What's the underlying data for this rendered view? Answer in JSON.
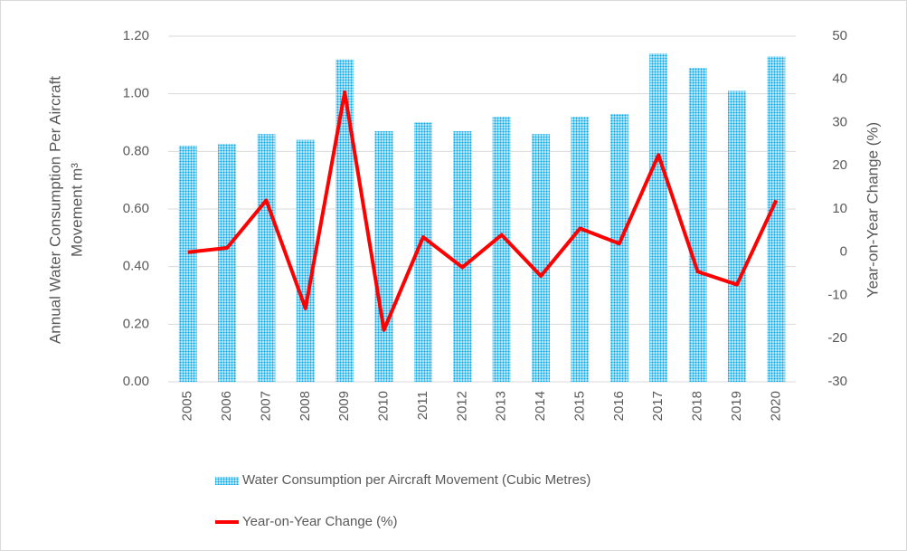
{
  "chart_data": {
    "type": "bar_line",
    "y_label": [
      "Annual Water Consumption Per Aircraft",
      "Movement  m³"
    ],
    "y2_label": "Year-on-Year Change (%)",
    "categories": [
      "2005",
      "2006",
      "2007",
      "2008",
      "2009",
      "2010",
      "2011",
      "2012",
      "2013",
      "2014",
      "2015",
      "2016",
      "2017",
      "2018",
      "2019",
      "2020"
    ],
    "series": [
      {
        "name": "Water Consumption per Aircraft Movement (Cubic Metres)",
        "type": "bar",
        "color": "#00a8e8",
        "values": [
          0.82,
          0.825,
          0.86,
          0.84,
          1.12,
          0.87,
          0.9,
          0.87,
          0.92,
          0.86,
          0.92,
          0.93,
          1.14,
          1.09,
          1.01,
          1.13
        ]
      },
      {
        "name": "Year-on-Year Change (%)",
        "type": "line",
        "color": "#ff0000",
        "axis": "y2",
        "values": [
          0,
          1,
          12,
          -13,
          37,
          -18,
          3.5,
          -3.5,
          4,
          -5.5,
          5.5,
          2,
          22.5,
          -4.5,
          -7.5,
          12
        ]
      }
    ],
    "ylim": [
      0,
      1.2
    ],
    "yticks": [
      {
        "value": 0,
        "label": "0.00"
      },
      {
        "value": 0.2,
        "label": "0.20"
      },
      {
        "value": 0.4,
        "label": "0.40"
      },
      {
        "value": 0.6,
        "label": "0.60"
      },
      {
        "value": 0.8,
        "label": "0.80"
      },
      {
        "value": 1,
        "label": "1.00"
      },
      {
        "value": 1.2,
        "label": "1.20"
      }
    ],
    "y2lim": [
      -30,
      50
    ],
    "y2ticks": [
      -30,
      -20,
      -10,
      0,
      10,
      20,
      30,
      40,
      50
    ],
    "legend": "bottom"
  }
}
